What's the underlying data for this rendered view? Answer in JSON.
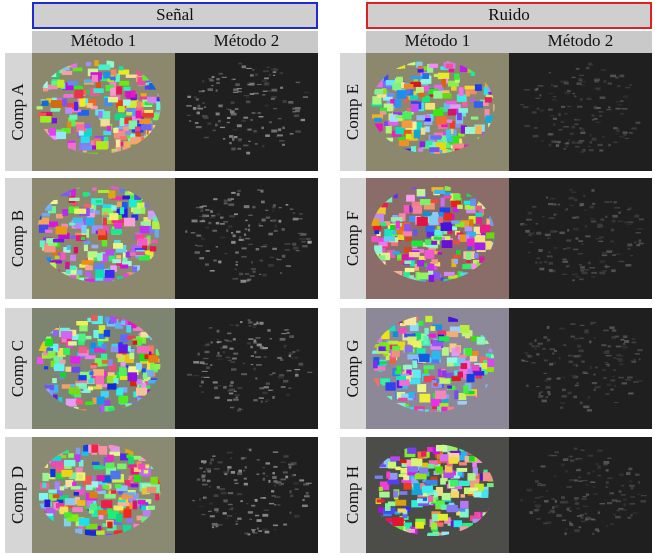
{
  "groups": [
    {
      "title": "Señal",
      "methods": [
        "Método 1",
        "Método 2"
      ],
      "rows": [
        "Comp A",
        "Comp B",
        "Comp C",
        "Comp D"
      ]
    },
    {
      "title": "Ruido",
      "methods": [
        "Método 1",
        "Método 2"
      ],
      "rows": [
        "Comp E",
        "Comp F",
        "Comp G",
        "Comp H"
      ]
    }
  ]
}
